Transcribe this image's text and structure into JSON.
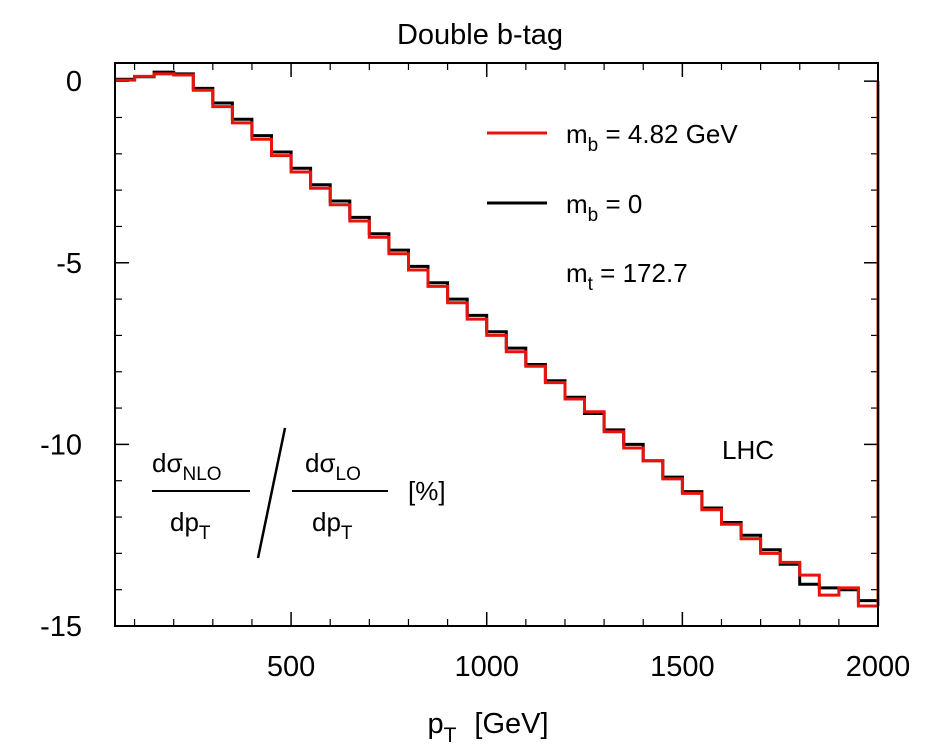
{
  "chart_data": {
    "type": "line",
    "title": "Double b-tag",
    "xlabel": "p_T [GeV]",
    "xlabel_main": "p",
    "xlabel_sub": "T",
    "xlabel_unit": "[GeV]",
    "ylabel": "",
    "xlim": [
      50,
      2000
    ],
    "ylim": [
      -15,
      0.5
    ],
    "xticks": [
      500,
      1000,
      1500,
      2000
    ],
    "xtick_labels": [
      "500",
      "1000",
      "1500",
      "2000"
    ],
    "yticks": [
      0,
      -5,
      -10,
      -15
    ],
    "ytick_labels": [
      "0",
      "-5",
      "-10",
      "-15"
    ],
    "grid": false,
    "legend_position": "top-right",
    "step_width": 50,
    "series": [
      {
        "name": "m_b = 4.82 GeV",
        "label_main": "m",
        "label_sub": "b",
        "label_rest": " = 4.82 GeV",
        "color": "#e8140c",
        "bin_starts": [
          50,
          100,
          150,
          200,
          250,
          300,
          350,
          400,
          450,
          500,
          550,
          600,
          650,
          700,
          750,
          800,
          850,
          900,
          950,
          1000,
          1050,
          1100,
          1150,
          1200,
          1250,
          1300,
          1350,
          1400,
          1450,
          1500,
          1550,
          1600,
          1650,
          1700,
          1750,
          1800,
          1850,
          1900,
          1950
        ],
        "values": [
          0.03,
          0.13,
          0.2,
          0.17,
          -0.25,
          -0.7,
          -1.15,
          -1.6,
          -2.05,
          -2.5,
          -2.95,
          -3.4,
          -3.85,
          -4.3,
          -4.75,
          -5.2,
          -5.65,
          -6.1,
          -6.55,
          -7.0,
          -7.45,
          -7.85,
          -8.3,
          -8.75,
          -9.1,
          -9.65,
          -10.1,
          -10.45,
          -10.95,
          -11.35,
          -11.8,
          -12.2,
          -12.6,
          -13.0,
          -13.25,
          -13.6,
          -14.15,
          -13.95,
          -14.45
        ]
      },
      {
        "name": "m_b = 0",
        "label_main": "m",
        "label_sub": "b",
        "label_rest": " = 0",
        "color": "#000000",
        "bin_starts": [
          50,
          100,
          150,
          200,
          250,
          300,
          350,
          400,
          450,
          500,
          550,
          600,
          650,
          700,
          750,
          800,
          850,
          900,
          950,
          1000,
          1050,
          1100,
          1150,
          1200,
          1250,
          1300,
          1350,
          1400,
          1450,
          1500,
          1550,
          1600,
          1650,
          1700,
          1750,
          1800,
          1850,
          1900,
          1950
        ],
        "values": [
          0.05,
          0.12,
          0.25,
          0.2,
          -0.2,
          -0.6,
          -1.05,
          -1.5,
          -1.95,
          -2.4,
          -2.85,
          -3.3,
          -3.75,
          -4.2,
          -4.65,
          -5.1,
          -5.55,
          -6.0,
          -6.45,
          -6.9,
          -7.35,
          -7.8,
          -8.25,
          -8.7,
          -9.15,
          -9.6,
          -10.0,
          -10.45,
          -10.9,
          -11.3,
          -11.75,
          -12.15,
          -12.5,
          -12.9,
          -13.3,
          -13.85,
          -13.95,
          -14.0,
          -14.3
        ]
      }
    ],
    "annotations": {
      "mt_main": "m",
      "mt_sub": "t",
      "mt_rest": " = 172.7",
      "lhc": "LHC",
      "frac_num1_main": "dσ",
      "frac_num1_sub": "NLO",
      "frac_den1_main": "dp",
      "frac_den1_sub": "T",
      "frac_num2_main": "dσ",
      "frac_num2_sub": "LO",
      "frac_den2_main": "dp",
      "frac_den2_sub": "T",
      "unit": "[%]"
    }
  }
}
